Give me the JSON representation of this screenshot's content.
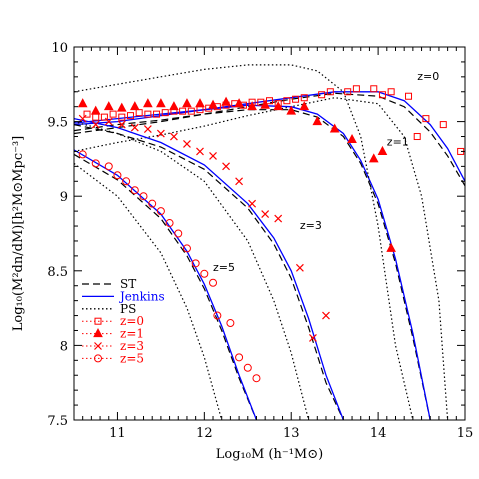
{
  "chart_data": {
    "type": "line",
    "xlabel": "Log₁₀M (h⁻¹M⊙)",
    "ylabel": "Log₁₀(M²dn/dM)[h²M⊙Mpc⁻³]",
    "xlim": [
      10.5,
      15
    ],
    "ylim": [
      7.5,
      10
    ],
    "xticks": [
      "11",
      "12",
      "13",
      "14",
      "15"
    ],
    "yticks": [
      "7.5",
      "8",
      "8.5",
      "9",
      "9.5",
      "10"
    ],
    "grid": false,
    "legend_position": "lower-left",
    "colors": {
      "data": "#ff0000",
      "jenkins": "#0000ff",
      "theory": "#000000"
    },
    "legend": [
      {
        "label": "ST",
        "style": "dashed",
        "color": "#000000"
      },
      {
        "label": "Jenkins",
        "style": "solid",
        "color": "#0000ff"
      },
      {
        "label": "PS",
        "style": "dotted",
        "color": "#000000"
      },
      {
        "label": "z=0",
        "marker": "square",
        "color": "#ff0000"
      },
      {
        "label": "z=1",
        "marker": "triangle",
        "color": "#ff0000"
      },
      {
        "label": "z=3",
        "marker": "cross",
        "color": "#ff0000"
      },
      {
        "label": "z=5",
        "marker": "circle",
        "color": "#ff0000"
      }
    ],
    "annotations": [
      {
        "text": "z=0",
        "x": 14.45,
        "y": 9.78
      },
      {
        "text": "z=1",
        "x": 14.1,
        "y": 9.34
      },
      {
        "text": "z=3",
        "x": 13.1,
        "y": 8.78
      },
      {
        "text": "z=5",
        "x": 12.1,
        "y": 8.5
      }
    ],
    "series": [
      {
        "label": "z=0",
        "kind": "ST",
        "x": [
          10.5,
          11,
          11.5,
          12,
          12.5,
          13,
          13.5,
          14,
          14.3,
          14.6,
          14.8,
          15
        ],
        "y": [
          9.44,
          9.48,
          9.51,
          9.55,
          9.6,
          9.65,
          9.69,
          9.67,
          9.6,
          9.43,
          9.27,
          9.07
        ]
      },
      {
        "label": "z=0",
        "kind": "Jenkins",
        "x": [
          10.5,
          11,
          11.5,
          12,
          12.5,
          13,
          13.5,
          14,
          14.3,
          14.6,
          14.8,
          15
        ],
        "y": [
          9.49,
          9.52,
          9.55,
          9.58,
          9.62,
          9.66,
          9.7,
          9.7,
          9.64,
          9.48,
          9.32,
          9.1
        ]
      },
      {
        "label": "z=0",
        "kind": "PS",
        "x": [
          10.5,
          11,
          11.5,
          12,
          12.5,
          13,
          13.5,
          14,
          14.3,
          14.5,
          14.7,
          14.8
        ],
        "y": [
          9.3,
          9.36,
          9.41,
          9.47,
          9.54,
          9.6,
          9.66,
          9.62,
          9.4,
          9.0,
          8.3,
          7.5
        ]
      },
      {
        "label": "z=1",
        "kind": "ST",
        "x": [
          10.5,
          11,
          11.5,
          12,
          12.5,
          13,
          13.3,
          13.6,
          13.8,
          14,
          14.2,
          14.4,
          14.6
        ],
        "y": [
          9.42,
          9.46,
          9.5,
          9.55,
          9.58,
          9.58,
          9.53,
          9.4,
          9.22,
          8.95,
          8.55,
          8.05,
          7.5
        ]
      },
      {
        "label": "z=1",
        "kind": "Jenkins",
        "x": [
          10.5,
          11,
          11.5,
          12,
          12.5,
          13,
          13.3,
          13.6,
          13.8,
          14,
          14.2,
          14.4,
          14.6
        ],
        "y": [
          9.48,
          9.5,
          9.54,
          9.58,
          9.61,
          9.6,
          9.55,
          9.42,
          9.24,
          8.98,
          8.58,
          8.08,
          7.5
        ]
      },
      {
        "label": "z=1",
        "kind": "PS",
        "x": [
          10.5,
          11,
          11.5,
          12,
          12.5,
          13,
          13.3,
          13.6,
          13.8,
          14,
          14.2,
          14.4
        ],
        "y": [
          9.7,
          9.75,
          9.8,
          9.85,
          9.88,
          9.88,
          9.84,
          9.7,
          9.4,
          8.8,
          8.0,
          7.5
        ]
      },
      {
        "label": "z=3",
        "kind": "ST",
        "x": [
          10.5,
          11,
          11.5,
          12,
          12.5,
          12.8,
          13,
          13.2,
          13.4,
          13.6
        ],
        "y": [
          9.48,
          9.42,
          9.33,
          9.18,
          8.92,
          8.68,
          8.45,
          8.12,
          7.75,
          7.5
        ]
      },
      {
        "label": "z=3",
        "kind": "Jenkins",
        "x": [
          10.5,
          11,
          11.5,
          12,
          12.5,
          12.8,
          13,
          13.2,
          13.4,
          13.6
        ],
        "y": [
          9.52,
          9.46,
          9.36,
          9.21,
          8.95,
          8.72,
          8.5,
          8.18,
          7.8,
          7.5
        ]
      },
      {
        "label": "z=3",
        "kind": "PS",
        "x": [
          10.5,
          11,
          11.5,
          12,
          12.5,
          12.8,
          13,
          13.2
        ],
        "y": [
          9.5,
          9.42,
          9.3,
          9.1,
          8.7,
          8.3,
          7.95,
          7.5
        ]
      },
      {
        "label": "z=5",
        "kind": "ST",
        "x": [
          10.5,
          11,
          11.5,
          11.8,
          12,
          12.2,
          12.4,
          12.6
        ],
        "y": [
          9.28,
          9.11,
          8.85,
          8.6,
          8.38,
          8.1,
          7.78,
          7.5
        ]
      },
      {
        "label": "z=5",
        "kind": "Jenkins",
        "x": [
          10.5,
          11,
          11.5,
          11.8,
          12,
          12.2,
          12.4,
          12.6
        ],
        "y": [
          9.31,
          9.14,
          8.88,
          8.63,
          8.41,
          8.13,
          7.8,
          7.5
        ]
      },
      {
        "label": "z=5",
        "kind": "PS",
        "x": [
          10.5,
          11,
          11.5,
          11.8,
          12,
          12.2
        ],
        "y": [
          9.22,
          9.0,
          8.62,
          8.25,
          7.92,
          7.5
        ]
      }
    ],
    "points": [
      {
        "label": "z=0",
        "marker": "square",
        "x": [
          10.65,
          10.75,
          10.85,
          10.95,
          11.05,
          11.15,
          11.25,
          11.35,
          11.45,
          11.55,
          11.65,
          11.75,
          11.85,
          11.95,
          12.05,
          12.15,
          12.25,
          12.35,
          12.45,
          12.55,
          12.65,
          12.75,
          12.85,
          12.95,
          13.05,
          13.15,
          13.35,
          13.45,
          13.65,
          13.75,
          13.95,
          14.05,
          14.15,
          14.35,
          14.45,
          14.55,
          14.75,
          14.95
        ],
        "y": [
          9.55,
          9.53,
          9.53,
          9.55,
          9.53,
          9.54,
          9.56,
          9.55,
          9.55,
          9.56,
          9.57,
          9.57,
          9.57,
          9.58,
          9.59,
          9.6,
          9.61,
          9.62,
          9.61,
          9.63,
          9.63,
          9.64,
          9.62,
          9.64,
          9.65,
          9.66,
          9.68,
          9.7,
          9.7,
          9.72,
          9.72,
          9.68,
          9.7,
          9.67,
          9.4,
          9.52,
          9.48,
          9.3
        ]
      },
      {
        "label": "z=1",
        "marker": "triangle",
        "x": [
          10.6,
          10.75,
          10.9,
          11.05,
          11.2,
          11.35,
          11.5,
          11.65,
          11.8,
          11.95,
          12.1,
          12.25,
          12.4,
          12.55,
          12.7,
          12.85,
          13.0,
          13.15,
          13.3,
          13.5,
          13.7,
          13.95,
          14.05,
          14.15
        ],
        "y": [
          9.62,
          9.57,
          9.6,
          9.59,
          9.6,
          9.62,
          9.62,
          9.6,
          9.62,
          9.62,
          9.61,
          9.63,
          9.62,
          9.6,
          9.61,
          9.6,
          9.57,
          9.6,
          9.5,
          9.45,
          9.38,
          9.25,
          9.3,
          8.65
        ]
      },
      {
        "label": "z=3",
        "marker": "cross",
        "x": [
          10.6,
          10.75,
          10.9,
          11.05,
          11.2,
          11.35,
          11.5,
          11.65,
          11.8,
          11.95,
          12.1,
          12.25,
          12.4,
          12.55,
          12.7,
          12.85,
          13.1,
          13.25,
          13.4
        ],
        "y": [
          9.52,
          9.48,
          9.5,
          9.48,
          9.46,
          9.45,
          9.42,
          9.4,
          9.35,
          9.3,
          9.27,
          9.2,
          9.1,
          8.95,
          8.88,
          8.85,
          8.52,
          8.05,
          8.2
        ]
      },
      {
        "label": "z=5",
        "marker": "circle",
        "x": [
          10.6,
          10.75,
          10.9,
          11.0,
          11.1,
          11.2,
          11.3,
          11.4,
          11.5,
          11.6,
          11.7,
          11.8,
          11.9,
          12.0,
          12.1,
          12.15,
          12.3,
          12.4,
          12.5,
          12.6
        ],
        "y": [
          9.28,
          9.22,
          9.2,
          9.14,
          9.1,
          9.04,
          9.0,
          8.95,
          8.9,
          8.82,
          8.75,
          8.65,
          8.55,
          8.48,
          8.42,
          8.2,
          8.15,
          7.92,
          7.85,
          7.78
        ]
      }
    ]
  }
}
